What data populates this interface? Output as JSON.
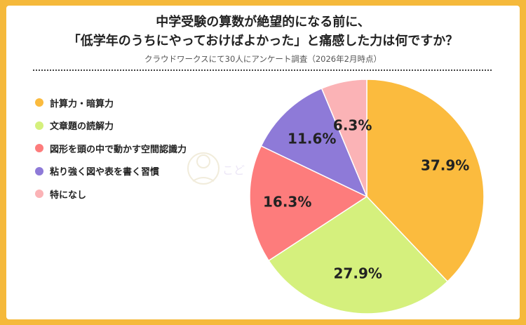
{
  "title_line1": "中学受験の算数が絶望的になる前に、",
  "title_line2": "「低学年のうちにやっておけばよかった」と痛感した力は何ですか？",
  "subtitle": "クラウドワークスにて30人にアンケート調査（2026年2月時点）",
  "watermark_text": "こども",
  "chart_data": {
    "type": "pie",
    "title": "中学受験の算数が絶望的になる前に、「低学年のうちにやっておけばよかった」と痛感した力は何ですか？",
    "legend_position": "left",
    "slices": [
      {
        "label": "計算力・暗算力",
        "value": 37.9,
        "value_label": "37.9%",
        "color": "#fbbb3e"
      },
      {
        "label": "文章題の読解力",
        "value": 27.9,
        "value_label": "27.9%",
        "color": "#d5f07d"
      },
      {
        "label": "図形を頭の中で動かす空間認識力",
        "value": 16.3,
        "value_label": "16.3%",
        "color": "#fd7c7c"
      },
      {
        "label": "粘り強く図や表を書く習慣",
        "value": 11.6,
        "value_label": "11.6%",
        "color": "#8e7ad8"
      },
      {
        "label": "特になし",
        "value": 6.3,
        "value_label": "6.3%",
        "color": "#fbb3b6"
      }
    ]
  }
}
